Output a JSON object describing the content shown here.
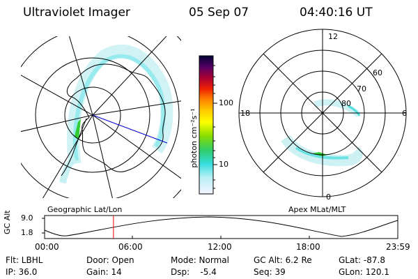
{
  "header": {
    "title": "Ultraviolet Imager",
    "date": "05 Sep 07",
    "time": "04:40:16 UT"
  },
  "colorbar": {
    "unit_label": "photon cm⁻²s⁻¹",
    "tick_100": "100",
    "tick_10": "10"
  },
  "left_map": {
    "caption": "Geographic Lat/Lon"
  },
  "right_map": {
    "caption": "Apex MLat/MLT",
    "mlt_12": "12",
    "mlt_18": "18",
    "mlt_6": "6",
    "mlt_0": "0",
    "lat_60": "60",
    "lat_70": "70",
    "lat_80": "80"
  },
  "altitude_panel": {
    "axis_label": "GC Alt",
    "y_top": "9.0",
    "y_bottom": "1.8",
    "x_ticks": [
      "00:00",
      "06:00",
      "12:00",
      "18:00",
      "23:59"
    ],
    "current_time_fraction": 0.195
  },
  "status": {
    "flt": "Flt: LBHL",
    "ip": "IP: 36.0",
    "door": "Door: Open",
    "gain": "Gain: 14",
    "mode": "Mode: Normal",
    "dsp": "Dsp:    -5.4",
    "gcalt": "GC Alt: 6.2 Re",
    "seq": "Seq: 39",
    "glat": "GLat: -87.8",
    "glon": "GLon: 120.1"
  },
  "colors": {
    "marker": "#ff0000",
    "track": "#0000cc",
    "aurora_green": "#33cc33",
    "aurora_cyan": "#33dddd"
  }
}
